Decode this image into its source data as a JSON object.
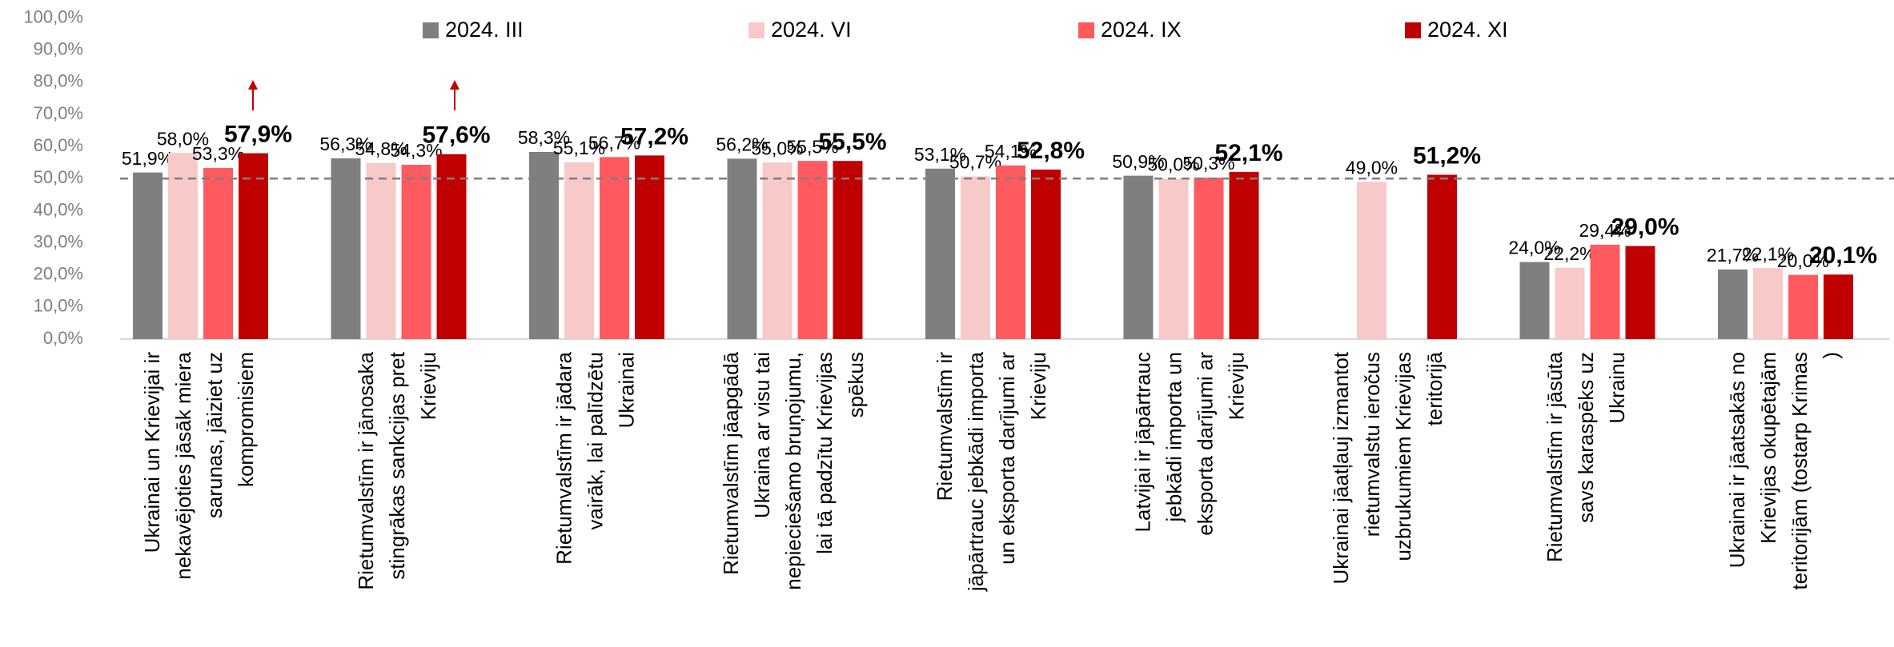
{
  "chart_data": {
    "type": "bar",
    "categories": [
      "Ukrainai un Krievijai ir\nnekavējoties jāsāk miera\nsarunas, jāiziet uz\nkompromisiem",
      "Rietumvalstīm ir jānosaka\nstingrākas sankcijas pret\nKrieviju",
      "Rietumvalstīm ir jādara\nvairāk, lai palīdzētu\nUkrainai",
      "Rietumvalstīm jāapgādā\nUkraina ar visu tai\nnepieciešamo bruņojumu,\nlai tā padzītu Krievijas\nspēkus",
      "Rietumvalstīm ir\njāpārtrauc jebkādi importa\nun eksporta darījumi ar\nKrieviju",
      "Latvijai ir jāpārtrauc\njebkādi importa un\neksporta darījumi ar\nKrieviju",
      "Ukrainai jāatļauj izmantot\nrietumvalstu ieročus\nuzbrukumiem Krievijas\nteritorijā",
      "Rietumvalstīm ir jāsūta\nsavs karaspēks uz\nUkrainu",
      "Ukrainai ir jāatsakās no\nKrievijas okupētajām\nteritorijām (tostarp Krimas\n)"
    ],
    "series": [
      {
        "name": "2024. III",
        "color": "#7f7f7f",
        "values": [
          51.9,
          56.3,
          58.3,
          56.2,
          53.1,
          50.9,
          null,
          24.0,
          21.7
        ],
        "value_labels": [
          "51,9%",
          "56,3%",
          "58,3%",
          "56,2%",
          "53,1%",
          "50,9%",
          null,
          "24,0%",
          "21,7%"
        ]
      },
      {
        "name": "2024. VI",
        "color": "#f7c9c9",
        "values": [
          58.0,
          54.8,
          55.1,
          55.0,
          50.7,
          50.0,
          49.0,
          22.2,
          22.1
        ],
        "value_labels": [
          "58,0%",
          "54,8%",
          "55,1%",
          "55,0%",
          "50,7%",
          "50,0%",
          "49,0%",
          "22,2%",
          "22,1%"
        ]
      },
      {
        "name": "2024. IX",
        "color": "#ff5a5f",
        "values": [
          53.3,
          54.3,
          56.7,
          55.5,
          54.1,
          50.3,
          null,
          29.4,
          20.0
        ],
        "value_labels": [
          "53,3%",
          "54,3%",
          "56,7%",
          "55,5%",
          "54,1%",
          "50,3%",
          null,
          "29,4%",
          "20,0%"
        ]
      },
      {
        "name": "2024. XI",
        "color": "#c00000",
        "values": [
          57.9,
          57.6,
          57.2,
          55.5,
          52.8,
          52.1,
          51.2,
          29.0,
          20.1
        ],
        "value_labels": [
          "57,9%",
          "57,6%",
          "57,2%",
          "55,5%",
          "52,8%",
          "52,1%",
          "51,2%",
          "29,0%",
          "20,1%"
        ]
      }
    ],
    "ylim": [
      0,
      100
    ],
    "yticks": [
      {
        "value": 0,
        "label": "0,0%"
      },
      {
        "value": 10,
        "label": "10,0%"
      },
      {
        "value": 20,
        "label": "20,0%"
      },
      {
        "value": 30,
        "label": "30,0%"
      },
      {
        "value": 40,
        "label": "40,0%"
      },
      {
        "value": 50,
        "label": "50,0%"
      },
      {
        "value": 60,
        "label": "60,0%"
      },
      {
        "value": 70,
        "label": "70,0%"
      },
      {
        "value": 80,
        "label": "80,0%"
      },
      {
        "value": 90,
        "label": "90,0%"
      },
      {
        "value": 100,
        "label": "100,0%"
      }
    ],
    "reference_line": 50,
    "legend": "top"
  }
}
